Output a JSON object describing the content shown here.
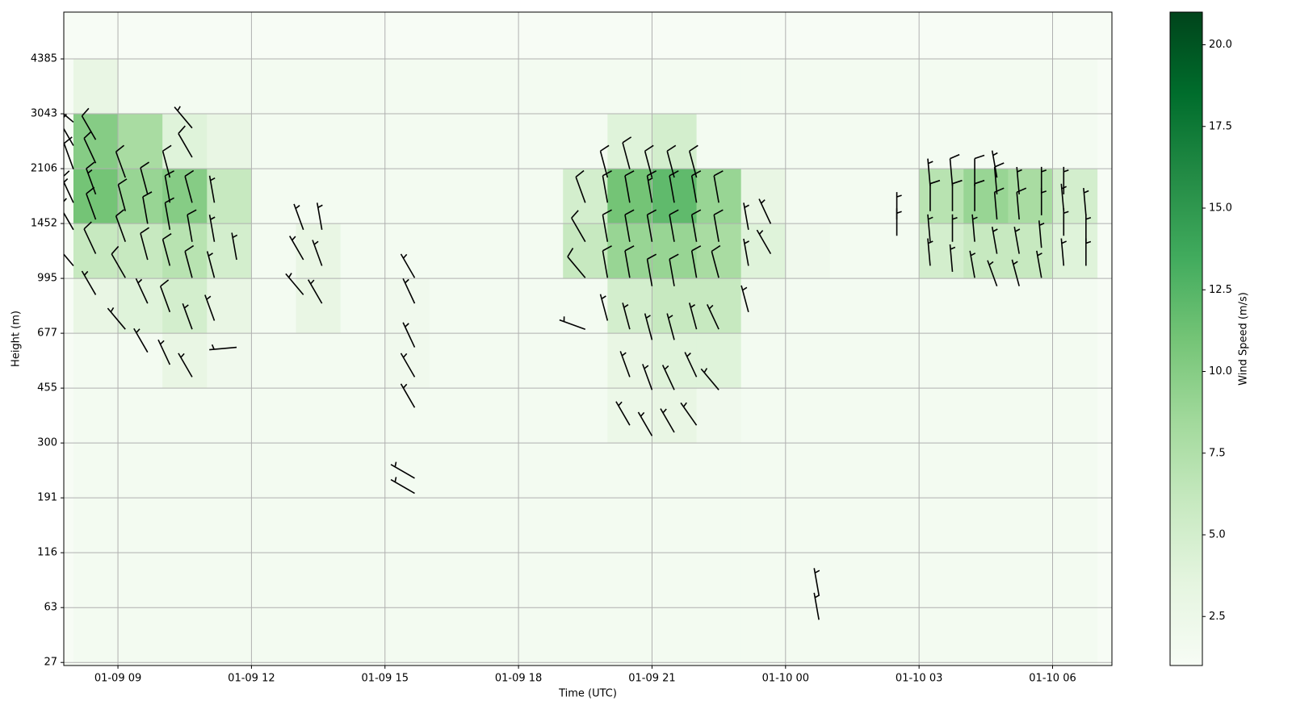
{
  "chart_data": {
    "type": "heatmap",
    "x_label": "Time (UTC)",
    "y_label": "Height (m)",
    "colorbar_label": "Wind Speed (m/s)",
    "xlim": [
      "01-09 07:47",
      "01-10 07:20"
    ],
    "xticks": [
      "01-09 09",
      "01-09 12",
      "01-09 15",
      "01-09 18",
      "01-09 21",
      "01-10 00",
      "01-10 03",
      "01-10 06"
    ],
    "ylim": [
      25,
      5530
    ],
    "yticks": [
      27,
      63,
      116,
      191,
      300,
      455,
      677,
      995,
      1452,
      2106,
      3043,
      4385
    ],
    "grid": true,
    "colormap": [
      "#f7fcf5",
      "#e5f5e0",
      "#c7e9c0",
      "#a1d99b",
      "#74c476",
      "#41ab5d",
      "#238b45",
      "#006d2c",
      "#00441b"
    ],
    "clim": [
      1,
      21
    ],
    "cticks": [
      2.5,
      {
        "value": 5,
        "label": "5.0"
      },
      7.5,
      {
        "value": 10,
        "label": "10.0"
      },
      12.5,
      {
        "value": 15,
        "label": "15.0"
      },
      17.5,
      {
        "value": 20,
        "label": "20.0"
      }
    ],
    "heatmap": {
      "x": [
        "01-09 08:00",
        "01-09 09:00",
        "01-09 10:00",
        "01-09 11:00",
        "01-09 12:00",
        "01-09 13:00",
        "01-09 14:00",
        "01-09 15:00",
        "01-09 16:00",
        "01-09 17:00",
        "01-09 18:00",
        "01-09 19:00",
        "01-09 20:00",
        "01-09 21:00",
        "01-09 22:00",
        "01-09 23:00",
        "01-10 00:00",
        "01-10 01:00",
        "01-10 02:00",
        "01-10 03:00",
        "01-10 04:00",
        "01-10 05:00",
        "01-10 06:00",
        "01-10 07:00"
      ],
      "values": [
        [
          1.5,
          1.5,
          1.5,
          1.5,
          1.5,
          1.5,
          1.5,
          1.5,
          1.5,
          1.5,
          1.5,
          1.5,
          1.5,
          1.5,
          1.5,
          1.5,
          1.5,
          1.5,
          1.5,
          1.5,
          1.5,
          1.5,
          1.5
        ],
        [
          1.5,
          1.5,
          1.5,
          1.5,
          1.5,
          1.5,
          1.5,
          1.5,
          1.5,
          1.5,
          1.5,
          1.5,
          1.5,
          1.5,
          1.5,
          1.5,
          1.5,
          1.5,
          1.5,
          1.5,
          1.5,
          1.5,
          1.5
        ],
        [
          1.5,
          1.5,
          1.5,
          1.5,
          1.5,
          1.5,
          1.5,
          1.5,
          1.5,
          1.5,
          1.5,
          1.5,
          1.5,
          1.5,
          1.5,
          1.5,
          1.5,
          1.5,
          1.5,
          1.5,
          1.5,
          1.5,
          1.5
        ],
        [
          1.5,
          1.5,
          1.5,
          1.5,
          1.5,
          1.5,
          1.5,
          1.5,
          1.5,
          1.5,
          1.5,
          1.5,
          1.5,
          1.5,
          1.5,
          1.5,
          1.5,
          1.5,
          1.5,
          1.5,
          1.5,
          1.5,
          1.5
        ],
        [
          1.5,
          1.5,
          1.5,
          1.5,
          1.5,
          1.5,
          1.5,
          1.5,
          1.5,
          1.5,
          1.5,
          1.5,
          2.5,
          3,
          2,
          1.5,
          1.5,
          1.5,
          1.5,
          1.5,
          1.5,
          1.5,
          1.5
        ],
        [
          1.5,
          1.5,
          3,
          2,
          1.5,
          1.5,
          1.5,
          2,
          1.5,
          1.5,
          1.5,
          1.5,
          3,
          4,
          4,
          1.5,
          1.5,
          1.5,
          1.5,
          1.5,
          1.5,
          1.5,
          1.5
        ],
        [
          3,
          4,
          5,
          3,
          1.5,
          3,
          1.5,
          2,
          1.5,
          1.5,
          1.5,
          1.5,
          5,
          6,
          6,
          2,
          1.5,
          1.5,
          1.5,
          1.5,
          1.5,
          1.5,
          1.5
        ],
        [
          6,
          6,
          7,
          5,
          1.5,
          3,
          1.5,
          1.5,
          1.5,
          1.5,
          1.5,
          6,
          9,
          9,
          8,
          4,
          2,
          1.5,
          1.5,
          5,
          6,
          6,
          4
        ],
        [
          11,
          9,
          10,
          6,
          1.5,
          1.5,
          1.5,
          1.5,
          1.5,
          1.5,
          1.5,
          5,
          11,
          12,
          9,
          3,
          1.5,
          1.5,
          1.5,
          7,
          9,
          8,
          5
        ],
        [
          10,
          8,
          4,
          3,
          1.5,
          1.5,
          1.5,
          1.5,
          1.5,
          1.5,
          1.5,
          1.5,
          4,
          5,
          1.5,
          1.5,
          1.5,
          1.5,
          1.5,
          1.5,
          1.5,
          1.5,
          1.5
        ],
        [
          3,
          1.5,
          1.5,
          1.5,
          1.5,
          1.5,
          1.5,
          1.5,
          1.5,
          1.5,
          1.5,
          1.5,
          1.5,
          1.5,
          1.5,
          1.5,
          1.5,
          1.5,
          1.5,
          1.5,
          1.5,
          1.5,
          1.5
        ]
      ]
    },
    "barbs": [
      {
        "x": "01-09 08:00",
        "heights": [
          1100,
          1400,
          1700,
          2100,
          2500,
          2900
        ],
        "speeds": [
          8,
          12,
          13,
          12,
          11,
          9
        ],
        "directions": [
          320,
          330,
          335,
          340,
          330,
          310
        ]
      },
      {
        "x": "01-09 08:30",
        "heights": [
          900,
          1200,
          1500,
          1800,
          2200,
          2600
        ],
        "speeds": [
          6,
          9,
          12,
          13,
          11,
          8
        ],
        "directions": [
          330,
          335,
          340,
          340,
          335,
          330
        ]
      },
      {
        "x": "01-09 09:10",
        "heights": [
          700,
          1000,
          1300,
          1600,
          2000
        ],
        "speeds": [
          5,
          8,
          10,
          11,
          9
        ],
        "directions": [
          320,
          330,
          340,
          345,
          340
        ]
      },
      {
        "x": "01-09 09:40",
        "heights": [
          600,
          850,
          1150,
          1450,
          1800
        ],
        "speeds": [
          4,
          7,
          9,
          11,
          10
        ],
        "directions": [
          330,
          335,
          345,
          350,
          345
        ]
      },
      {
        "x": "01-09 10:10",
        "heights": [
          550,
          800,
          1100,
          1400,
          1700,
          2000
        ],
        "speeds": [
          5,
          8,
          10,
          11,
          10,
          9
        ],
        "directions": [
          335,
          340,
          345,
          350,
          350,
          345
        ]
      },
      {
        "x": "01-09 10:40",
        "heights": [
          500,
          700,
          1000,
          1300,
          1700,
          2300,
          2800
        ],
        "speeds": [
          4,
          7,
          9,
          10,
          11,
          9,
          7
        ],
        "directions": [
          330,
          340,
          345,
          350,
          345,
          330,
          320
        ]
      },
      {
        "x": "01-09 11:10",
        "heights": [
          750,
          1000,
          1300,
          1700
        ],
        "speeds": [
          5,
          6,
          7,
          7
        ],
        "directions": [
          340,
          345,
          350,
          350
        ]
      },
      {
        "x": "01-09 11:40",
        "heights": [
          620,
          1150
        ],
        "speeds": [
          6,
          4
        ],
        "directions": [
          265,
          350
        ]
      },
      {
        "x": "01-09 13:10",
        "heights": [
          900,
          1150,
          1400
        ],
        "speeds": [
          4,
          5,
          5
        ],
        "directions": [
          320,
          330,
          340
        ]
      },
      {
        "x": "01-09 13:35",
        "heights": [
          850,
          1100,
          1400
        ],
        "speeds": [
          4,
          5,
          4
        ],
        "directions": [
          330,
          340,
          350
        ]
      },
      {
        "x": "01-09 15:40",
        "heights": [
          200,
          230,
          400,
          500,
          620,
          850,
          1000
        ],
        "speeds": [
          6,
          5,
          5,
          5,
          4,
          4,
          3
        ],
        "directions": [
          300,
          300,
          330,
          330,
          335,
          335,
          330
        ]
      },
      {
        "x": "01-09 19:30",
        "heights": [
          700,
          1000,
          1300,
          1700
        ],
        "speeds": [
          6,
          8,
          9,
          8
        ],
        "directions": [
          290,
          320,
          330,
          340
        ]
      },
      {
        "x": "01-09 20:00",
        "heights": [
          750,
          1000,
          1300,
          1700,
          2000
        ],
        "speeds": [
          6,
          9,
          10,
          11,
          10
        ],
        "directions": [
          345,
          350,
          350,
          350,
          345
        ]
      },
      {
        "x": "01-09 20:30",
        "heights": [
          350,
          500,
          700,
          1000,
          1300,
          1700,
          2100
        ],
        "speeds": [
          4,
          5,
          7,
          10,
          11,
          12,
          11
        ],
        "directions": [
          330,
          340,
          345,
          350,
          350,
          350,
          345
        ]
      },
      {
        "x": "01-09 21:00",
        "heights": [
          320,
          450,
          650,
          950,
          1300,
          1700,
          2000
        ],
        "speeds": [
          4,
          5,
          7,
          10,
          12,
          13,
          11
        ],
        "directions": [
          330,
          340,
          345,
          350,
          350,
          350,
          345
        ]
      },
      {
        "x": "01-09 21:30",
        "heights": [
          330,
          450,
          650,
          950,
          1300,
          1700,
          2000
        ],
        "speeds": [
          4,
          5,
          7,
          10,
          12,
          12,
          10
        ],
        "directions": [
          330,
          335,
          345,
          350,
          350,
          350,
          345
        ]
      },
      {
        "x": "01-09 22:00",
        "heights": [
          350,
          500,
          700,
          1000,
          1300,
          1700,
          2000
        ],
        "speeds": [
          4,
          5,
          6,
          9,
          11,
          11,
          9
        ],
        "directions": [
          325,
          335,
          345,
          350,
          350,
          350,
          345
        ]
      },
      {
        "x": "01-09 22:30",
        "heights": [
          450,
          700,
          1000,
          1300,
          1700
        ],
        "speeds": [
          4,
          5,
          8,
          9,
          8
        ],
        "directions": [
          320,
          335,
          345,
          350,
          350
        ]
      },
      {
        "x": "01-09 23:10",
        "heights": [
          800,
          1100,
          1400
        ],
        "speeds": [
          5,
          5,
          5
        ],
        "directions": [
          345,
          350,
          350
        ]
      },
      {
        "x": "01-09 23:40",
        "heights": [
          1200,
          1450
        ],
        "speeds": [
          4,
          4
        ],
        "directions": [
          330,
          335
        ]
      },
      {
        "x": "01-10 00:45",
        "heights": [
          55,
          75
        ],
        "speeds": [
          3,
          3
        ],
        "directions": [
          350,
          350
        ]
      },
      {
        "x": "01-10 02:30",
        "heights": [
          1350,
          1500
        ],
        "speeds": [
          4,
          4
        ],
        "directions": [
          0,
          0
        ]
      },
      {
        "x": "01-10 03:15",
        "heights": [
          1100,
          1300,
          1600,
          1900
        ],
        "speeds": [
          5,
          6,
          8,
          7
        ],
        "directions": [
          355,
          355,
          0,
          355
        ]
      },
      {
        "x": "01-10 03:45",
        "heights": [
          1050,
          1300,
          1600,
          1900
        ],
        "speeds": [
          6,
          7,
          9,
          8
        ],
        "directions": [
          355,
          0,
          0,
          355
        ]
      },
      {
        "x": "01-10 04:15",
        "heights": [
          1000,
          1300,
          1600,
          1900
        ],
        "speeds": [
          6,
          7,
          9,
          8
        ],
        "directions": [
          350,
          355,
          0,
          0
        ]
      },
      {
        "x": "01-10 04:45",
        "heights": [
          950,
          1200,
          1500,
          1800,
          2000
        ],
        "speeds": [
          5,
          7,
          9,
          8,
          7
        ],
        "directions": [
          340,
          350,
          355,
          355,
          350
        ]
      },
      {
        "x": "01-10 05:15",
        "heights": [
          950,
          1200,
          1500,
          1800
        ],
        "speeds": [
          5,
          7,
          8,
          7
        ],
        "directions": [
          345,
          350,
          355,
          355
        ]
      },
      {
        "x": "01-10 05:45",
        "heights": [
          1000,
          1250,
          1550,
          1800
        ],
        "speeds": [
          5,
          6,
          7,
          6
        ],
        "directions": [
          350,
          355,
          0,
          0
        ]
      },
      {
        "x": "01-10 06:15",
        "heights": [
          1100,
          1350,
          1600,
          1800
        ],
        "speeds": [
          4,
          5,
          6,
          5
        ],
        "directions": [
          355,
          0,
          355,
          0
        ]
      },
      {
        "x": "01-10 06:45",
        "heights": [
          1100,
          1300,
          1550
        ],
        "speeds": [
          4,
          5,
          4
        ],
        "directions": [
          0,
          0,
          355
        ]
      }
    ]
  }
}
